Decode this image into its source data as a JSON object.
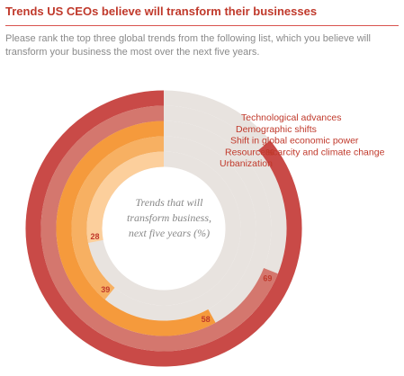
{
  "header": {
    "title": "Trends US CEOs believe will transform their businesses",
    "subtitle": "Please rank the top three global trends from the following list, which you believe will transform your business the most over the next five years."
  },
  "chart_data": {
    "type": "radial-bar",
    "unit": "%",
    "center_label_lines": [
      "Trends that will",
      "transform business,",
      "next five years (%)"
    ],
    "track_color": "#e8e3df",
    "series": [
      {
        "name": "Technological advances",
        "value": 86,
        "color": "#c94a47",
        "value_label": "86"
      },
      {
        "name": "Demographic  shifts",
        "value": 69,
        "color": "#d4776e",
        "value_label": "69"
      },
      {
        "name": "Shift in global economic power",
        "value": 58,
        "color": "#f59a3c",
        "value_label": "58"
      },
      {
        "name": "Resource scarcity and climate change",
        "value": 39,
        "color": "#f7b062",
        "value_label": "39"
      },
      {
        "name": "Urbanization",
        "value": 28,
        "color": "#fccf9c",
        "value_label": "28"
      }
    ]
  }
}
